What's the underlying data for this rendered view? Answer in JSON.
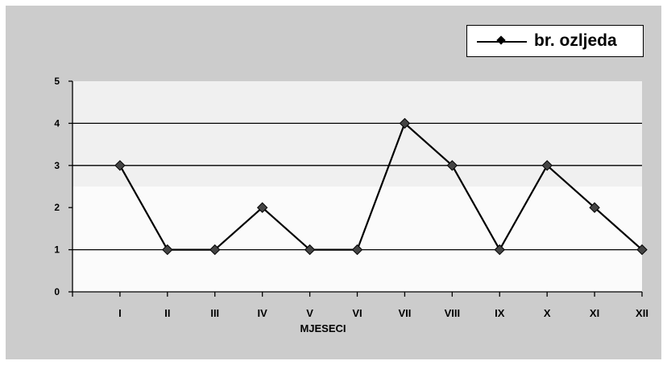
{
  "chart_data": {
    "type": "line",
    "title": "",
    "xlabel": "MJESECI",
    "ylabel": "",
    "categories": [
      "I",
      "II",
      "III",
      "IV",
      "V",
      "VI",
      "VII",
      "VIII",
      "IX",
      "X",
      "XI",
      "XII"
    ],
    "series": [
      {
        "name": "br. ozljeda",
        "values": [
          3,
          1,
          1,
          2,
          1,
          1,
          4,
          3,
          1,
          3,
          2,
          1
        ],
        "color": "#000000"
      }
    ],
    "ylim": [
      0,
      5
    ],
    "yticks": [
      "0",
      "1",
      "2",
      "3",
      "4",
      "5"
    ],
    "grid": true,
    "legend": "top-right",
    "colors": {
      "outer_background": "#cccccc",
      "plot_band_upper": "#f0f0f0",
      "plot_band_lower": "#fbfbfb",
      "line": "#000000"
    }
  }
}
